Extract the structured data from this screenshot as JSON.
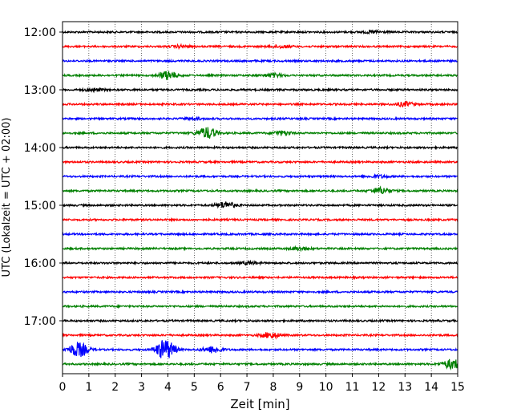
{
  "chart_data": {
    "type": "line",
    "title": "",
    "xlabel": "Zeit  [min]",
    "ylabel": "UTC (Lokalzeit = UTC + 02:00)",
    "xlim": [
      0,
      15
    ],
    "x_ticks": [
      "0",
      "1",
      "2",
      "3",
      "4",
      "5",
      "6",
      "7",
      "8",
      "9",
      "10",
      "11",
      "12",
      "13",
      "14",
      "15"
    ],
    "y_ticks": [
      "12:00",
      "13:00",
      "14:00",
      "15:00",
      "16:00",
      "17:00"
    ],
    "grid": {
      "vertical": true,
      "style": "dotted"
    },
    "colors": [
      "#000000",
      "#ff0000",
      "#0000ff",
      "#008000"
    ],
    "rows": [
      "12:00",
      "12:15",
      "12:30",
      "12:45",
      "13:00",
      "13:15",
      "13:30",
      "13:45",
      "14:00",
      "14:15",
      "14:30",
      "14:45",
      "15:00",
      "15:15",
      "15:30",
      "15:45",
      "16:00",
      "16:15",
      "16:30",
      "16:45",
      "17:00",
      "17:15",
      "17:30",
      "17:45"
    ],
    "events": [
      {
        "row": "12:00",
        "t_min": 11.8,
        "amp": 0.3
      },
      {
        "row": "12:15",
        "t_min": 4.5,
        "amp": 0.3
      },
      {
        "row": "12:15",
        "t_min": 8.3,
        "amp": 0.3
      },
      {
        "row": "12:45",
        "t_min": 4.0,
        "amp": 1.0
      },
      {
        "row": "12:45",
        "t_min": 8.0,
        "amp": 0.4
      },
      {
        "row": "13:00",
        "t_min": 1.2,
        "amp": 0.3
      },
      {
        "row": "13:15",
        "t_min": 13.0,
        "amp": 0.5
      },
      {
        "row": "13:30",
        "t_min": 5.0,
        "amp": 0.2
      },
      {
        "row": "13:45",
        "t_min": 5.5,
        "amp": 1.4
      },
      {
        "row": "13:45",
        "t_min": 8.3,
        "amp": 0.5
      },
      {
        "row": "14:30",
        "t_min": 12.0,
        "amp": 0.3
      },
      {
        "row": "14:45",
        "t_min": 12.1,
        "amp": 0.8
      },
      {
        "row": "15:00",
        "t_min": 6.2,
        "amp": 0.8
      },
      {
        "row": "15:45",
        "t_min": 9.0,
        "amp": 0.4
      },
      {
        "row": "16:00",
        "t_min": 7.1,
        "amp": 0.3
      },
      {
        "row": "17:15",
        "t_min": 7.9,
        "amp": 0.7
      },
      {
        "row": "17:30",
        "t_min": 0.6,
        "amp": 1.8
      },
      {
        "row": "17:30",
        "t_min": 3.9,
        "amp": 2.5
      },
      {
        "row": "17:30",
        "t_min": 5.7,
        "amp": 0.8
      },
      {
        "row": "17:45",
        "t_min": 14.8,
        "amp": 1.2
      }
    ]
  }
}
